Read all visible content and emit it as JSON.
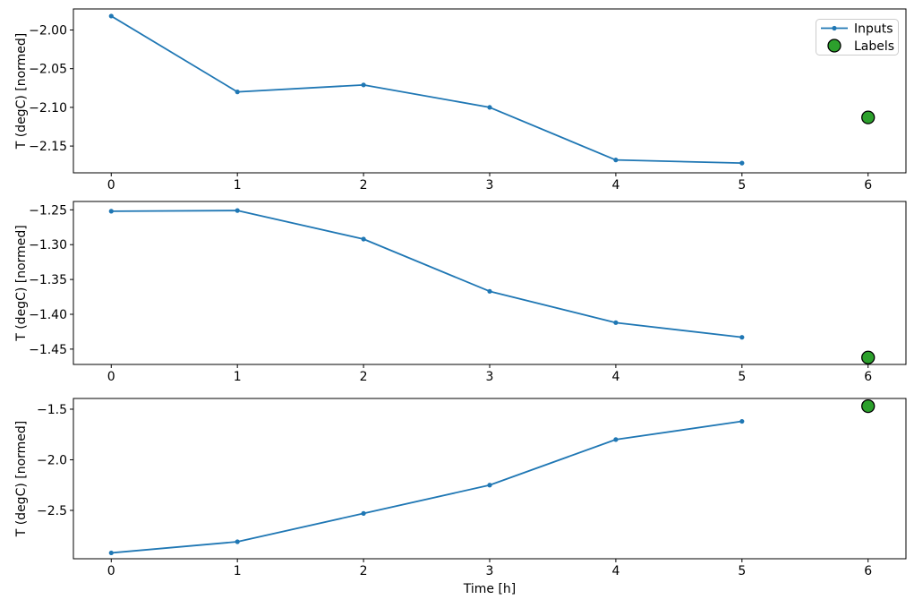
{
  "figure": {
    "xlabel": "Time [h]",
    "ylabel": "T (degC) [normed]",
    "colors": {
      "line": "#1f77b4",
      "label_marker_fill": "#2ca02c",
      "label_marker_edge": "#000000",
      "axis": "#000000",
      "tick_text": "#000000",
      "legend_border": "#cccccc",
      "legend_bg": "#ffffff",
      "background": "#ffffff"
    },
    "legend": {
      "position": "top-right",
      "entries": [
        {
          "label": "Inputs",
          "marker": "line-with-dot",
          "color": "#1f77b4"
        },
        {
          "label": "Labels",
          "marker": "circle",
          "color": "#2ca02c"
        }
      ]
    }
  },
  "chart_data": [
    {
      "type": "line",
      "title": "",
      "xlabel": "",
      "ylabel": "T (degC) [normed]",
      "x": [
        0,
        1,
        2,
        3,
        4,
        5
      ],
      "series": [
        {
          "name": "Inputs",
          "values": [
            -1.982,
            -2.08,
            -2.071,
            -2.1,
            -2.168,
            -2.172
          ]
        }
      ],
      "label_point": {
        "name": "Labels",
        "x": 6,
        "y": -2.113
      },
      "xticks": {
        "values": [
          0,
          1,
          2,
          3,
          4,
          5,
          6
        ],
        "labels": [
          "0",
          "1",
          "2",
          "3",
          "4",
          "5",
          "6"
        ]
      },
      "yticks": {
        "values": [
          -2.0,
          -2.05,
          -2.1,
          -2.15
        ],
        "labels": [
          "−2.00",
          "−2.05",
          "−2.10",
          "−2.15"
        ]
      },
      "xlim": [
        -0.3,
        6.3
      ],
      "ylim": [
        -2.1846,
        -1.9728
      ],
      "grid": false,
      "legend": true
    },
    {
      "type": "line",
      "title": "",
      "xlabel": "",
      "ylabel": "T (degC) [normed]",
      "x": [
        0,
        1,
        2,
        3,
        4,
        5
      ],
      "series": [
        {
          "name": "Inputs",
          "values": [
            -1.252,
            -1.251,
            -1.292,
            -1.367,
            -1.412,
            -1.433
          ]
        }
      ],
      "label_point": {
        "name": "Labels",
        "x": 6,
        "y": -1.462
      },
      "xticks": {
        "values": [
          0,
          1,
          2,
          3,
          4,
          5,
          6
        ],
        "labels": [
          "0",
          "1",
          "2",
          "3",
          "4",
          "5",
          "6"
        ]
      },
      "yticks": {
        "values": [
          -1.25,
          -1.3,
          -1.35,
          -1.4,
          -1.45
        ],
        "labels": [
          "−1.25",
          "−1.30",
          "−1.35",
          "−1.40",
          "−1.45"
        ]
      },
      "xlim": [
        -0.3,
        6.3
      ],
      "ylim": [
        -1.472,
        -1.238
      ],
      "grid": false,
      "legend": false
    },
    {
      "type": "line",
      "title": "",
      "xlabel": "Time [h]",
      "ylabel": "T (degC) [normed]",
      "x": [
        0,
        1,
        2,
        3,
        4,
        5
      ],
      "series": [
        {
          "name": "Inputs",
          "values": [
            -2.92,
            -2.81,
            -2.53,
            -2.25,
            -1.8,
            -1.62
          ]
        }
      ],
      "label_point": {
        "name": "Labels",
        "x": 6,
        "y": -1.47
      },
      "xticks": {
        "values": [
          0,
          1,
          2,
          3,
          4,
          5,
          6
        ],
        "labels": [
          "0",
          "1",
          "2",
          "3",
          "4",
          "5",
          "6"
        ]
      },
      "yticks": {
        "values": [
          -1.5,
          -2.0,
          -2.5
        ],
        "labels": [
          "−1.5",
          "−2.0",
          "−2.5"
        ]
      },
      "xlim": [
        -0.3,
        6.3
      ],
      "ylim": [
        -2.978,
        -1.394
      ],
      "grid": false,
      "legend": false
    }
  ]
}
